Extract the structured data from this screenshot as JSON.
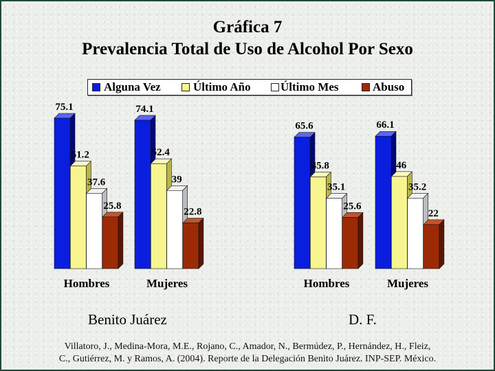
{
  "title_line1": "Gráfica 7",
  "title_line2": "Prevalencia Total de Uso de Alcohol Por Sexo",
  "legend": [
    {
      "label": "Alguna Vez",
      "color": "#0a1ee0"
    },
    {
      "label": "Último Año",
      "color": "#f7f590"
    },
    {
      "label": "Último Mes",
      "color": "#ffffff"
    },
    {
      "label": "Abuso",
      "color": "#9c2b05"
    }
  ],
  "panels": [
    "Benito Juárez",
    "D. F."
  ],
  "credit_line1": "Villatoro, J., Medina-Mora, M.E., Rojano, C., Amador, N., Bermúdez, P., Hernández, H., Fleiz,",
  "credit_line2": "C., Gutiérrez, M. y Ramos, A. (2004). Reporte de la Delegación Benito Juárez. INP-SEP. México.",
  "chart_data": [
    {
      "type": "bar",
      "panel": "Benito Juárez",
      "categories": [
        "Hombres",
        "Mujeres"
      ],
      "series": [
        {
          "name": "Alguna Vez",
          "values": [
            75.1,
            74.1
          ]
        },
        {
          "name": "Último Año",
          "values": [
            51.2,
            52.4
          ]
        },
        {
          "name": "Último Mes",
          "values": [
            37.6,
            39
          ]
        },
        {
          "name": "Abuso",
          "values": [
            25.8,
            22.8
          ]
        }
      ],
      "ylim": [
        0,
        80
      ],
      "grid": false,
      "legend_position": "top"
    },
    {
      "type": "bar",
      "panel": "D. F.",
      "categories": [
        "Hombres",
        "Mujeres"
      ],
      "series": [
        {
          "name": "Alguna Vez",
          "values": [
            65.6,
            66.1
          ]
        },
        {
          "name": "Último Año",
          "values": [
            45.8,
            46
          ]
        },
        {
          "name": "Último Mes",
          "values": [
            35.1,
            35.2
          ]
        },
        {
          "name": "Abuso",
          "values": [
            25.6,
            22
          ]
        }
      ],
      "ylim": [
        0,
        80
      ],
      "grid": false,
      "legend_position": "top"
    }
  ]
}
